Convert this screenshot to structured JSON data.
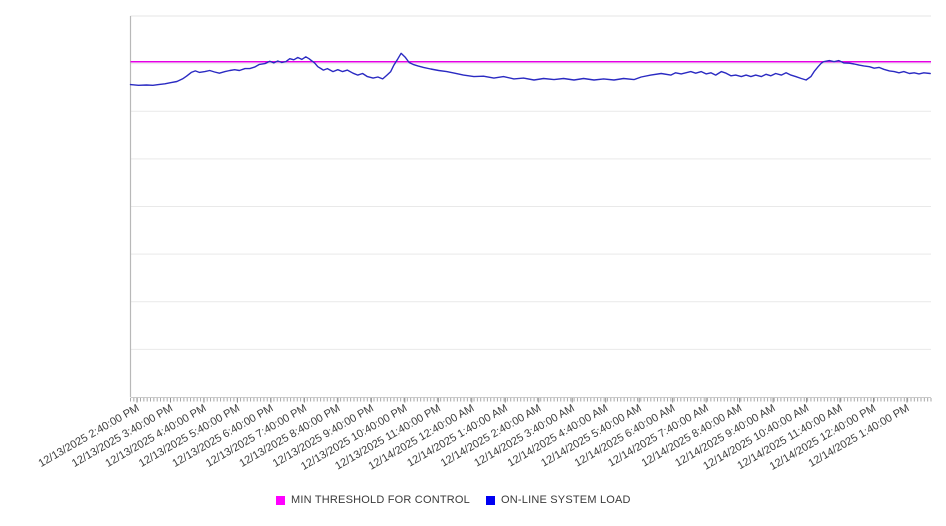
{
  "page": {
    "background_color": "#ffffff"
  },
  "colors": {
    "threshold_line": "#e400e4",
    "threshold_swatch": "#ff00ff",
    "load_line": "#2a2ac2",
    "load_swatch": "#0000f2",
    "gridline": "#e9e9e9",
    "plot_top_border": "#e4e4e4",
    "plot_left_border": "#b8b8b8",
    "x_axis_line": "#c9c9c9",
    "tick_mark": "#a6a6a6",
    "tick_label_text": "#3d3d3d"
  },
  "legend": {
    "items": [
      {
        "label": "MIN THRESHOLD FOR CONTROL",
        "swatch_color": "#ff00ff"
      },
      {
        "label": "ON-LINE SYSTEM LOAD",
        "swatch_color": "#0000f2"
      }
    ]
  },
  "chart_data": {
    "type": "line",
    "title": "",
    "xlabel": "",
    "ylabel": "",
    "y_axis_labels_visible": false,
    "y_grid_divisions": 8,
    "ylim": [
      0,
      100
    ],
    "value_scale_note": "no y-axis labels visible; values expressed as percent of plot height from bottom axis",
    "legend_position": "bottom-center",
    "x_minor_tick_count": 240,
    "x_tick_labels": [
      "12/13/2025 2:40:00 PM",
      "12/13/2025 3:40:00 PM",
      "12/13/2025 4:40:00 PM",
      "12/13/2025 5:40:00 PM",
      "12/13/2025 6:40:00 PM",
      "12/13/2025 7:40:00 PM",
      "12/13/2025 8:40:00 PM",
      "12/13/2025 9:40:00 PM",
      "12/13/2025 10:40:00 PM",
      "12/13/2025 11:40:00 PM",
      "12/14/2025 12:40:00 AM",
      "12/14/2025 1:40:00 AM",
      "12/14/2025 2:40:00 AM",
      "12/14/2025 3:40:00 AM",
      "12/14/2025 4:40:00 AM",
      "12/14/2025 5:40:00 AM",
      "12/14/2025 6:40:00 AM",
      "12/14/2025 7:40:00 AM",
      "12/14/2025 8:40:00 AM",
      "12/14/2025 9:40:00 AM",
      "12/14/2025 10:40:00 AM",
      "12/14/2025 11:40:00 AM",
      "12/14/2025 12:40:00 PM",
      "12/14/2025 1:40:00 PM"
    ],
    "series": [
      {
        "name": "MIN THRESHOLD FOR CONTROL",
        "style": "constant",
        "color": "#e400e4",
        "value": 88.0
      },
      {
        "name": "ON-LINE SYSTEM LOAD",
        "style": "line",
        "color": "#2a2ac2",
        "points": [
          [
            0.0,
            82.0
          ],
          [
            0.01,
            81.8
          ],
          [
            0.02,
            81.9
          ],
          [
            0.028,
            81.8
          ],
          [
            0.035,
            82.0
          ],
          [
            0.043,
            82.2
          ],
          [
            0.05,
            82.5
          ],
          [
            0.058,
            82.8
          ],
          [
            0.065,
            83.5
          ],
          [
            0.07,
            84.2
          ],
          [
            0.076,
            85.2
          ],
          [
            0.081,
            85.6
          ],
          [
            0.086,
            85.2
          ],
          [
            0.093,
            85.4
          ],
          [
            0.099,
            85.7
          ],
          [
            0.105,
            85.3
          ],
          [
            0.111,
            85.0
          ],
          [
            0.118,
            85.4
          ],
          [
            0.124,
            85.7
          ],
          [
            0.13,
            85.9
          ],
          [
            0.136,
            85.7
          ],
          [
            0.143,
            86.2
          ],
          [
            0.149,
            86.2
          ],
          [
            0.155,
            86.6
          ],
          [
            0.161,
            87.3
          ],
          [
            0.168,
            87.5
          ],
          [
            0.174,
            88.1
          ],
          [
            0.179,
            87.7
          ],
          [
            0.184,
            88.2
          ],
          [
            0.189,
            87.8
          ],
          [
            0.194,
            88.0
          ],
          [
            0.199,
            88.8
          ],
          [
            0.204,
            88.5
          ],
          [
            0.209,
            89.1
          ],
          [
            0.214,
            88.6
          ],
          [
            0.219,
            89.3
          ],
          [
            0.223,
            88.8
          ],
          [
            0.226,
            88.3
          ],
          [
            0.23,
            87.7
          ],
          [
            0.234,
            86.7
          ],
          [
            0.238,
            86.2
          ],
          [
            0.241,
            85.8
          ],
          [
            0.246,
            86.2
          ],
          [
            0.253,
            85.4
          ],
          [
            0.259,
            85.9
          ],
          [
            0.265,
            85.4
          ],
          [
            0.271,
            85.8
          ],
          [
            0.278,
            85.0
          ],
          [
            0.284,
            84.5
          ],
          [
            0.29,
            84.9
          ],
          [
            0.296,
            84.1
          ],
          [
            0.303,
            83.7
          ],
          [
            0.309,
            84.0
          ],
          [
            0.315,
            83.5
          ],
          [
            0.32,
            84.4
          ],
          [
            0.325,
            85.4
          ],
          [
            0.329,
            87.1
          ],
          [
            0.334,
            88.8
          ],
          [
            0.338,
            90.2
          ],
          [
            0.343,
            89.2
          ],
          [
            0.348,
            87.8
          ],
          [
            0.353,
            87.3
          ],
          [
            0.359,
            86.9
          ],
          [
            0.366,
            86.5
          ],
          [
            0.375,
            86.1
          ],
          [
            0.385,
            85.7
          ],
          [
            0.395,
            85.4
          ],
          [
            0.405,
            85.0
          ],
          [
            0.416,
            84.5
          ],
          [
            0.429,
            84.1
          ],
          [
            0.441,
            84.2
          ],
          [
            0.454,
            83.7
          ],
          [
            0.466,
            84.1
          ],
          [
            0.479,
            83.5
          ],
          [
            0.491,
            83.7
          ],
          [
            0.504,
            83.2
          ],
          [
            0.516,
            83.6
          ],
          [
            0.529,
            83.3
          ],
          [
            0.541,
            83.6
          ],
          [
            0.554,
            83.2
          ],
          [
            0.566,
            83.6
          ],
          [
            0.579,
            83.2
          ],
          [
            0.591,
            83.5
          ],
          [
            0.604,
            83.2
          ],
          [
            0.616,
            83.6
          ],
          [
            0.629,
            83.3
          ],
          [
            0.638,
            84.0
          ],
          [
            0.65,
            84.5
          ],
          [
            0.663,
            84.9
          ],
          [
            0.675,
            84.5
          ],
          [
            0.681,
            85.1
          ],
          [
            0.688,
            84.8
          ],
          [
            0.7,
            85.4
          ],
          [
            0.706,
            85.0
          ],
          [
            0.713,
            85.4
          ],
          [
            0.719,
            84.8
          ],
          [
            0.725,
            85.1
          ],
          [
            0.731,
            84.5
          ],
          [
            0.738,
            85.4
          ],
          [
            0.744,
            85.0
          ],
          [
            0.75,
            84.3
          ],
          [
            0.756,
            84.5
          ],
          [
            0.763,
            84.1
          ],
          [
            0.769,
            84.5
          ],
          [
            0.775,
            84.1
          ],
          [
            0.781,
            84.5
          ],
          [
            0.788,
            84.1
          ],
          [
            0.794,
            84.7
          ],
          [
            0.8,
            84.3
          ],
          [
            0.806,
            84.9
          ],
          [
            0.813,
            84.5
          ],
          [
            0.819,
            85.1
          ],
          [
            0.825,
            84.5
          ],
          [
            0.831,
            84.1
          ],
          [
            0.838,
            83.6
          ],
          [
            0.844,
            83.2
          ],
          [
            0.85,
            84.1
          ],
          [
            0.854,
            85.4
          ],
          [
            0.859,
            86.7
          ],
          [
            0.863,
            87.6
          ],
          [
            0.866,
            88.0
          ],
          [
            0.873,
            88.3
          ],
          [
            0.879,
            88.0
          ],
          [
            0.885,
            88.3
          ],
          [
            0.891,
            87.7
          ],
          [
            0.898,
            87.6
          ],
          [
            0.904,
            87.4
          ],
          [
            0.91,
            87.1
          ],
          [
            0.916,
            86.9
          ],
          [
            0.923,
            86.7
          ],
          [
            0.929,
            86.3
          ],
          [
            0.935,
            86.5
          ],
          [
            0.941,
            86.0
          ],
          [
            0.948,
            85.6
          ],
          [
            0.954,
            85.4
          ],
          [
            0.96,
            85.1
          ],
          [
            0.966,
            85.4
          ],
          [
            0.973,
            84.9
          ],
          [
            0.979,
            85.1
          ],
          [
            0.985,
            84.8
          ],
          [
            0.991,
            85.1
          ],
          [
            0.999,
            84.9
          ]
        ]
      }
    ]
  }
}
